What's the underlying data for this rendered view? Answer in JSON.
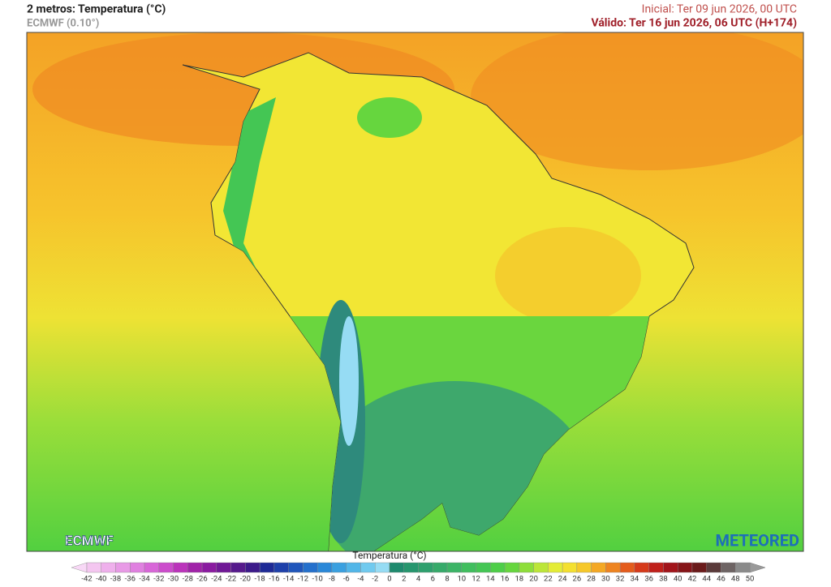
{
  "header": {
    "title": "2 metros: Temperatura (°C)",
    "model": "ECMWF (0.10°)",
    "initial": "Inicial: Ter 09 jun 2026, 00 UTC",
    "valid": "Válido: Ter 16 jun 2026, 06 UTC (H+174)"
  },
  "logos": {
    "left": "ECMWF",
    "right": "METEORED"
  },
  "colorbar": {
    "label": "Temperatura (°C)",
    "ticks": [
      -42,
      -40,
      -38,
      -36,
      -34,
      -32,
      -30,
      -28,
      -26,
      -24,
      -22,
      -20,
      -18,
      -16,
      -14,
      -12,
      -10,
      -8,
      -6,
      -4,
      -2,
      0,
      2,
      4,
      6,
      8,
      10,
      12,
      14,
      16,
      18,
      20,
      22,
      24,
      26,
      28,
      30,
      32,
      34,
      36,
      38,
      40,
      42,
      44,
      46,
      48,
      50
    ],
    "colors": [
      "#f4c6f0",
      "#efb0ec",
      "#e89ae6",
      "#e080e0",
      "#d866d8",
      "#cc4ccc",
      "#bb33bb",
      "#a022a8",
      "#8a1aa0",
      "#701896",
      "#561a8c",
      "#3c1a8a",
      "#1e2a96",
      "#1e40aa",
      "#2056bb",
      "#2470cc",
      "#2a88d8",
      "#3aa0e0",
      "#52b6e8",
      "#70caef",
      "#96dcf4",
      "#1e8a6e",
      "#26966e",
      "#2ea06e",
      "#36aa6a",
      "#3cb466",
      "#40be5e",
      "#44c654",
      "#4ece48",
      "#66d63e",
      "#8ede3a",
      "#bce638",
      "#e4ec36",
      "#f4e030",
      "#f6c82a",
      "#f4a824",
      "#ee8420",
      "#e45c1c",
      "#d63a1a",
      "#c0201a",
      "#a2141a",
      "#861418",
      "#6a1a1a",
      "#5a3a3a",
      "#6e6464",
      "#8a8a8a"
    ]
  }
}
